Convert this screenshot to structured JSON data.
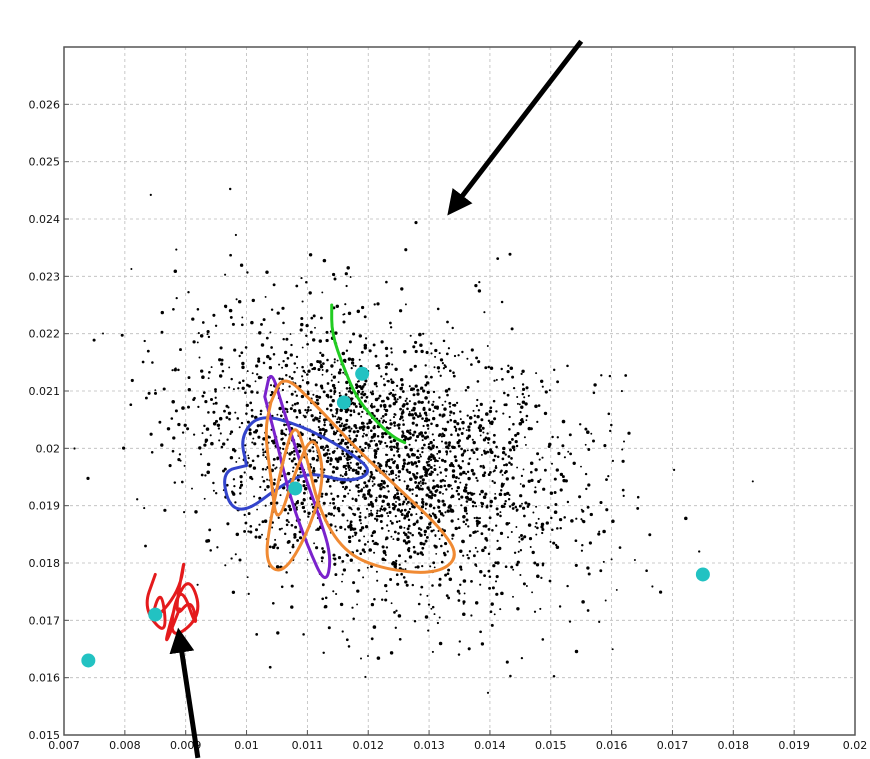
{
  "chart_data": {
    "type": "scatter",
    "title": "",
    "xlabel": "",
    "ylabel": "",
    "xlim": [
      0.007,
      0.02
    ],
    "ylim": [
      0.015,
      0.027
    ],
    "grid": true,
    "x_ticks": [
      0.007,
      0.008,
      0.009,
      0.01,
      0.011,
      0.012,
      0.013,
      0.014,
      0.015,
      0.016,
      0.017,
      0.018,
      0.019,
      0.02
    ],
    "x_tick_labels": [
      "0.007",
      "0.008",
      "0.009",
      "0.01",
      "0.011",
      "0.012",
      "0.013",
      "0.014",
      "0.015",
      "0.016",
      "0.017",
      "0.018",
      "0.019",
      "0.02"
    ],
    "y_ticks": [
      0.015,
      0.016,
      0.017,
      0.018,
      0.019,
      0.02,
      0.021,
      0.022,
      0.023,
      0.024,
      0.025,
      0.026
    ],
    "y_tick_labels": [
      "0.015",
      "0.016",
      "0.017",
      "0.018",
      "0.019",
      "0.02",
      "0.021",
      "0.022",
      "0.023",
      "0.024",
      "0.025",
      "0.026"
    ],
    "point_cloud": {
      "color": "#000000",
      "center": [
        0.0122,
        0.0198
      ],
      "spread": [
        0.0016,
        0.0014
      ],
      "count": 2600
    },
    "trajectories": [
      {
        "color": "#e41a1c",
        "points": [
          [
            0.0085,
            0.0178
          ],
          [
            0.0083,
            0.0172
          ],
          [
            0.0087,
            0.0167
          ],
          [
            0.0086,
            0.0176
          ],
          [
            0.0084,
            0.0169
          ],
          [
            0.0089,
            0.0175
          ],
          [
            0.009,
            0.0182
          ],
          [
            0.0088,
            0.017
          ],
          [
            0.0091,
            0.0174
          ],
          [
            0.0092,
            0.0168
          ],
          [
            0.0089,
            0.0177
          ],
          [
            0.0087,
            0.0166
          ],
          [
            0.0093,
            0.0171
          ],
          [
            0.009,
            0.0179
          ],
          [
            0.0086,
            0.0164
          ],
          [
            0.0089,
            0.0172
          ]
        ]
      },
      {
        "color": "#3344cc",
        "points": [
          [
            0.01,
            0.0197
          ],
          [
            0.0099,
            0.0202
          ],
          [
            0.0102,
            0.0206
          ],
          [
            0.0109,
            0.0204
          ],
          [
            0.0116,
            0.02
          ],
          [
            0.0121,
            0.0196
          ],
          [
            0.0117,
            0.0194
          ],
          [
            0.011,
            0.0196
          ],
          [
            0.0105,
            0.0193
          ],
          [
            0.01,
            0.0189
          ],
          [
            0.0097,
            0.019
          ],
          [
            0.0096,
            0.0196
          ],
          [
            0.01,
            0.0197
          ]
        ]
      },
      {
        "color": "#7a22cc",
        "points": [
          [
            0.0103,
            0.0209
          ],
          [
            0.0104,
            0.0214
          ],
          [
            0.0106,
            0.0207
          ],
          [
            0.0109,
            0.0197
          ],
          [
            0.0112,
            0.0188
          ],
          [
            0.0114,
            0.0181
          ],
          [
            0.0113,
            0.0176
          ],
          [
            0.011,
            0.0183
          ],
          [
            0.0107,
            0.0192
          ],
          [
            0.0105,
            0.0201
          ],
          [
            0.0103,
            0.0209
          ]
        ]
      },
      {
        "color": "#f08a33",
        "points": [
          [
            0.0104,
            0.0208
          ],
          [
            0.0106,
            0.0213
          ],
          [
            0.0111,
            0.0208
          ],
          [
            0.0118,
            0.02
          ],
          [
            0.0125,
            0.0193
          ],
          [
            0.0132,
            0.0186
          ],
          [
            0.0135,
            0.0181
          ],
          [
            0.0131,
            0.0178
          ],
          [
            0.0122,
            0.0179
          ],
          [
            0.0116,
            0.0182
          ],
          [
            0.0112,
            0.0189
          ],
          [
            0.011,
            0.0198
          ],
          [
            0.0108,
            0.0205
          ],
          [
            0.0106,
            0.0198
          ],
          [
            0.0104,
            0.0188
          ],
          [
            0.0103,
            0.018
          ],
          [
            0.0106,
            0.0178
          ],
          [
            0.011,
            0.0185
          ],
          [
            0.0113,
            0.0195
          ],
          [
            0.0111,
            0.0203
          ],
          [
            0.0108,
            0.0196
          ],
          [
            0.0105,
            0.0186
          ],
          [
            0.0104,
            0.0195
          ],
          [
            0.0103,
            0.0203
          ],
          [
            0.0104,
            0.0208
          ]
        ]
      },
      {
        "color": "#22cc22",
        "points": [
          [
            0.0114,
            0.0225
          ],
          [
            0.0114,
            0.022
          ],
          [
            0.0116,
            0.0214
          ],
          [
            0.0118,
            0.0209
          ],
          [
            0.0121,
            0.0205
          ],
          [
            0.0124,
            0.0202
          ],
          [
            0.0126,
            0.0201
          ]
        ]
      }
    ],
    "highlight_points": {
      "color": "#22c2c2",
      "points": [
        [
          0.0074,
          0.0163
        ],
        [
          0.0085,
          0.0171
        ],
        [
          0.0108,
          0.0193
        ],
        [
          0.0116,
          0.0208
        ],
        [
          0.0119,
          0.0213
        ],
        [
          0.0175,
          0.0178
        ]
      ]
    },
    "annotations": [
      {
        "type": "arrow",
        "color": "#000000",
        "from": [
          0.0155,
          0.0271
        ],
        "to": [
          0.0134,
          0.0242
        ]
      },
      {
        "type": "arrow",
        "color": "#000000",
        "from": [
          0.0092,
          0.0146
        ],
        "to": [
          0.0089,
          0.0167
        ]
      }
    ]
  }
}
